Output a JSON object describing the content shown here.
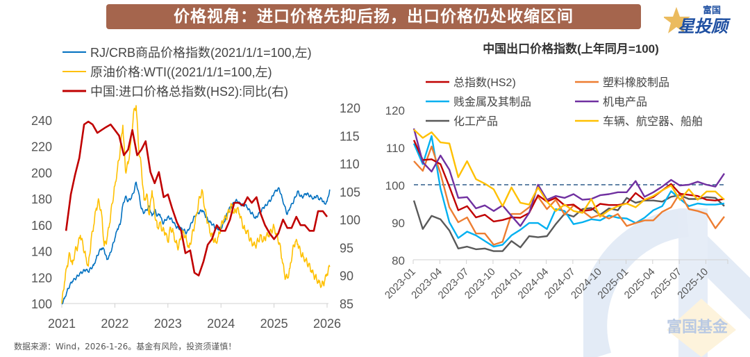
{
  "header": {
    "title": "价格视角：进口价格先抑后扬，出口价格仍处收缩区间",
    "logo_small": "富国",
    "logo_big": "星投顾"
  },
  "watermark": {
    "text": "富国基金"
  },
  "footer": {
    "source": "数据来源：Wind，2026-1-26。基金有风险，投资须谨慎！"
  },
  "colors": {
    "title_bg": "#a5654d",
    "rjcrb": "#0070c0",
    "wti": "#ffc000",
    "import_index": "#c00000",
    "export_total": "#c00000",
    "export_plastic": "#ed7d31",
    "export_metal": "#00b0f0",
    "export_mech": "#7030a0",
    "export_chem": "#595959",
    "export_vehicle": "#ffc000",
    "ref_line": "#2e5c8a"
  },
  "chart_data": [
    {
      "type": "line",
      "title": "",
      "legend_position": "top-left",
      "x_ticks": [
        "2021",
        "2022",
        "2023",
        "2024",
        "2025",
        "2026"
      ],
      "x_range": [
        2021.0,
        2026.0
      ],
      "y_left": {
        "ticks": [
          100,
          120,
          140,
          160,
          180,
          200,
          220,
          240
        ],
        "range": [
          100,
          250
        ]
      },
      "y_right": {
        "ticks": [
          85,
          90,
          95,
          100,
          105,
          110,
          115,
          120
        ],
        "range": [
          85,
          120
        ]
      },
      "series": [
        {
          "name": "RJ/CRB商品价格指数(2021/1/1=100,左)",
          "axis": "left",
          "color_key": "rjcrb",
          "x": [
            2021.0,
            2021.05,
            2021.1,
            2021.15,
            2021.2,
            2021.25,
            2021.3,
            2021.35,
            2021.4,
            2021.45,
            2021.5,
            2021.55,
            2021.6,
            2021.65,
            2021.7,
            2021.75,
            2021.8,
            2021.85,
            2021.9,
            2021.95,
            2022.0,
            2022.05,
            2022.1,
            2022.15,
            2022.2,
            2022.25,
            2022.3,
            2022.35,
            2022.4,
            2022.45,
            2022.5,
            2022.55,
            2022.6,
            2022.65,
            2022.7,
            2022.75,
            2022.8,
            2022.85,
            2022.9,
            2022.95,
            2023.0,
            2023.05,
            2023.1,
            2023.15,
            2023.2,
            2023.25,
            2023.3,
            2023.35,
            2023.4,
            2023.45,
            2023.5,
            2023.55,
            2023.6,
            2023.65,
            2023.7,
            2023.75,
            2023.8,
            2023.85,
            2023.9,
            2023.95,
            2024.0,
            2024.05,
            2024.1,
            2024.15,
            2024.2,
            2024.25,
            2024.3,
            2024.35,
            2024.4,
            2024.45,
            2024.5,
            2024.55,
            2024.6,
            2024.65,
            2024.7,
            2024.75,
            2024.8,
            2024.85,
            2024.9,
            2024.95,
            2025.0,
            2025.05,
            2025.1,
            2025.15,
            2025.2,
            2025.25,
            2025.3,
            2025.35,
            2025.4,
            2025.45,
            2025.5,
            2025.55,
            2025.6,
            2025.65,
            2025.7,
            2025.75,
            2025.8,
            2025.85,
            2025.9,
            2025.95,
            2026.0,
            2026.05
          ],
          "values": [
            100,
            103,
            108,
            112,
            115,
            117,
            120,
            123,
            125,
            127,
            126,
            129,
            131,
            136,
            140,
            142,
            140,
            132,
            135,
            141,
            148,
            156,
            160,
            176,
            183,
            180,
            182,
            186,
            194,
            185,
            172,
            168,
            170,
            172,
            165,
            170,
            166,
            168,
            162,
            165,
            168,
            167,
            164,
            160,
            158,
            157,
            155,
            152,
            155,
            160,
            165,
            168,
            170,
            172,
            169,
            166,
            164,
            162,
            158,
            157,
            157,
            160,
            165,
            170,
            172,
            176,
            178,
            177,
            176,
            177,
            175,
            172,
            170,
            166,
            168,
            169,
            172,
            173,
            176,
            178,
            183,
            186,
            188,
            182,
            176,
            170,
            175,
            178,
            182,
            186,
            181,
            180,
            182,
            181,
            180,
            179,
            182,
            180,
            181,
            178,
            180,
            187
          ]
        },
        {
          "name": "原油价格:WTI((2021/1/1=100,左)",
          "axis": "left",
          "color_key": "wti",
          "x": [
            2021.0,
            2021.05,
            2021.1,
            2021.15,
            2021.2,
            2021.25,
            2021.3,
            2021.35,
            2021.4,
            2021.45,
            2021.5,
            2021.55,
            2021.6,
            2021.65,
            2021.7,
            2021.75,
            2021.8,
            2021.85,
            2021.9,
            2021.95,
            2022.0,
            2022.05,
            2022.1,
            2022.15,
            2022.2,
            2022.25,
            2022.3,
            2022.35,
            2022.4,
            2022.45,
            2022.5,
            2022.55,
            2022.6,
            2022.65,
            2022.7,
            2022.75,
            2022.8,
            2022.85,
            2022.9,
            2022.95,
            2023.0,
            2023.05,
            2023.1,
            2023.15,
            2023.2,
            2023.25,
            2023.3,
            2023.35,
            2023.4,
            2023.45,
            2023.5,
            2023.55,
            2023.6,
            2023.65,
            2023.7,
            2023.75,
            2023.8,
            2023.85,
            2023.9,
            2023.95,
            2024.0,
            2024.05,
            2024.1,
            2024.15,
            2024.2,
            2024.25,
            2024.3,
            2024.35,
            2024.4,
            2024.45,
            2024.5,
            2024.55,
            2024.6,
            2024.65,
            2024.7,
            2024.75,
            2024.8,
            2024.85,
            2024.9,
            2024.95,
            2025.0,
            2025.05,
            2025.1,
            2025.15,
            2025.2,
            2025.25,
            2025.3,
            2025.35,
            2025.4,
            2025.45,
            2025.5,
            2025.55,
            2025.6,
            2025.65,
            2025.7,
            2025.75,
            2025.8,
            2025.85,
            2025.9,
            2025.95,
            2026.0,
            2026.05
          ],
          "values": [
            100,
            112,
            125,
            135,
            128,
            140,
            145,
            155,
            148,
            140,
            132,
            150,
            160,
            172,
            176,
            165,
            140,
            145,
            158,
            175,
            190,
            205,
            220,
            240,
            205,
            210,
            225,
            245,
            250,
            215,
            200,
            175,
            180,
            165,
            185,
            170,
            160,
            165,
            160,
            158,
            150,
            160,
            155,
            145,
            140,
            148,
            150,
            145,
            140,
            150,
            160,
            172,
            185,
            190,
            175,
            165,
            155,
            150,
            145,
            148,
            155,
            160,
            162,
            168,
            175,
            170,
            175,
            172,
            165,
            160,
            158,
            150,
            145,
            142,
            145,
            148,
            144,
            148,
            150,
            155,
            160,
            155,
            150,
            138,
            125,
            122,
            128,
            140,
            145,
            142,
            135,
            132,
            130,
            128,
            125,
            123,
            122,
            120,
            118,
            120,
            125,
            128
          ]
        },
        {
          "name": "中国:进口价格总指数(HS2):同比(右)",
          "axis": "right",
          "color_key": "import_index",
          "x": [
            2021.08,
            2021.17,
            2021.25,
            2021.33,
            2021.42,
            2021.5,
            2021.58,
            2021.67,
            2021.75,
            2021.83,
            2021.92,
            2022.0,
            2022.08,
            2022.17,
            2022.25,
            2022.33,
            2022.42,
            2022.5,
            2022.58,
            2022.67,
            2022.75,
            2022.83,
            2022.92,
            2023.0,
            2023.08,
            2023.17,
            2023.25,
            2023.33,
            2023.42,
            2023.5,
            2023.58,
            2023.67,
            2023.75,
            2023.83,
            2023.92,
            2024.0,
            2024.08,
            2024.17,
            2024.25,
            2024.33,
            2024.42,
            2024.5,
            2024.58,
            2024.67,
            2024.75,
            2024.83,
            2024.92,
            2025.0,
            2025.08,
            2025.17,
            2025.25,
            2025.33,
            2025.42,
            2025.5,
            2025.58,
            2025.67,
            2025.75,
            2025.83,
            2025.92,
            2026.0
          ],
          "values": [
            98.0,
            104.5,
            108.0,
            111.0,
            117.0,
            117.5,
            117.0,
            115.5,
            116.0,
            116.5,
            117.0,
            116.0,
            115.0,
            111.5,
            112.5,
            116.0,
            111.5,
            112.5,
            114.0,
            108.5,
            106.5,
            108.5,
            104.0,
            104.5,
            102.0,
            99.5,
            98.0,
            94.0,
            94.5,
            90.5,
            90.0,
            92.5,
            95.5,
            96.5,
            99.0,
            98.0,
            98.0,
            100.0,
            103.0,
            103.0,
            102.5,
            104.0,
            103.0,
            104.0,
            101.0,
            99.0,
            97.5,
            96.5,
            97.5,
            100.0,
            98.5,
            98.5,
            100.5,
            99.0,
            99.0,
            98.0,
            98.0,
            101.5,
            101.5,
            100.5
          ]
        }
      ]
    },
    {
      "type": "line",
      "title": "中国出口价格指数(上年同月=100)",
      "legend_position": "top",
      "x_ticks": [
        "2023-01",
        "2023-04",
        "2023-07",
        "2023-10",
        "2024-01",
        "2024-04",
        "2024-07",
        "2024-10",
        "2025-01",
        "2025-04",
        "2025-07",
        "2025-10"
      ],
      "x": [
        "2023-01",
        "2023-02",
        "2023-03",
        "2023-04",
        "2023-05",
        "2023-06",
        "2023-07",
        "2023-08",
        "2023-09",
        "2023-10",
        "2023-11",
        "2023-12",
        "2024-01",
        "2024-02",
        "2024-03",
        "2024-04",
        "2024-05",
        "2024-06",
        "2024-07",
        "2024-08",
        "2024-09",
        "2024-10",
        "2024-11",
        "2024-12",
        "2025-01",
        "2025-02",
        "2025-03",
        "2025-04",
        "2025-05",
        "2025-06",
        "2025-07",
        "2025-08",
        "2025-09",
        "2025-10",
        "2025-11",
        "2025-12"
      ],
      "y_ticks": [
        80,
        90,
        100,
        110,
        120
      ],
      "ylim": [
        80,
        120
      ],
      "reference_line": 100,
      "series": [
        {
          "name": "总指数(HS2)",
          "color_key": "export_total",
          "values": [
            111.9,
            106.6,
            106.8,
            105.5,
            99.5,
            93.2,
            94.3,
            91.3,
            92.0,
            90.2,
            90.6,
            91.3,
            91.2,
            92.5,
            97.2,
            95.5,
            96.5,
            94.5,
            94.7,
            93.0,
            93.3,
            94.9,
            94.6,
            94.6,
            95.0,
            97.8,
            96.0,
            96.7,
            98.5,
            100.2,
            97.6,
            97.3,
            97.0,
            96.0,
            95.8,
            96.2
          ]
        },
        {
          "name": "塑料橡胶制品",
          "color_key": "export_plastic",
          "values": [
            106.3,
            103.7,
            110.2,
            103.0,
            94.0,
            90.0,
            91.3,
            87.0,
            87.0,
            84.0,
            84.8,
            92.2,
            92.2,
            94.0,
            96.8,
            93.5,
            96.0,
            92.0,
            94.5,
            93.0,
            91.2,
            92.0,
            91.0,
            92.2,
            89.0,
            89.8,
            90.5,
            90.5,
            92.8,
            94.0,
            97.8,
            93.5,
            93.0,
            92.2,
            88.4,
            91.5
          ]
        },
        {
          "name": "贱金属及其制品",
          "color_key": "export_metal",
          "values": [
            111.0,
            105.5,
            113.0,
            99.0,
            90.0,
            85.8,
            87.5,
            86.5,
            85.0,
            83.5,
            84.0,
            86.5,
            88.0,
            89.8,
            89.8,
            88.2,
            93.5,
            93.0,
            89.5,
            90.0,
            90.8,
            90.5,
            91.8,
            91.2,
            91.0,
            89.8,
            91.2,
            93.2,
            94.3,
            98.3,
            96.2,
            94.3,
            95.0,
            94.7,
            94.7,
            95.0
          ]
        },
        {
          "name": "机电产品",
          "color_key": "export_mech",
          "values": [
            115.0,
            106.0,
            103.5,
            107.8,
            104.0,
            96.5,
            96.7,
            93.7,
            94.5,
            93.0,
            94.5,
            91.7,
            89.0,
            92.5,
            100.0,
            96.0,
            97.0,
            96.5,
            97.5,
            96.0,
            96.2,
            97.2,
            97.5,
            98.0,
            98.0,
            101.0,
            96.8,
            98.0,
            99.5,
            101.3,
            99.8,
            100.0,
            100.8,
            100.0,
            99.5,
            103.0
          ]
        },
        {
          "name": "化工产品",
          "color_key": "export_chem",
          "values": [
            95.8,
            88.2,
            91.7,
            90.8,
            87.8,
            83.0,
            83.5,
            82.8,
            83.0,
            82.3,
            82.3,
            85.0,
            83.3,
            86.3,
            86.0,
            86.3,
            89.5,
            92.3,
            91.5,
            93.5,
            93.8,
            92.0,
            93.7,
            93.2,
            96.5,
            95.2,
            95.8,
            95.8,
            95.5,
            96.8,
            97.2,
            96.2,
            96.2,
            96.7,
            96.5,
            94.3
          ]
        },
        {
          "name": "车辆、航空器、船舶",
          "color_key": "export_vehicle",
          "values": [
            114.7,
            112.5,
            114.0,
            111.3,
            111.0,
            102.0,
            106.3,
            101.5,
            100.3,
            98.8,
            94.3,
            99.3,
            95.2,
            94.7,
            99.3,
            95.5,
            93.0,
            94.7,
            93.0,
            92.5,
            96.2,
            91.5,
            93.2,
            94.3,
            95.0,
            94.0,
            96.0,
            97.0,
            98.5,
            99.8,
            96.0,
            98.8,
            96.0,
            98.2,
            98.2,
            96.0
          ]
        }
      ]
    }
  ]
}
